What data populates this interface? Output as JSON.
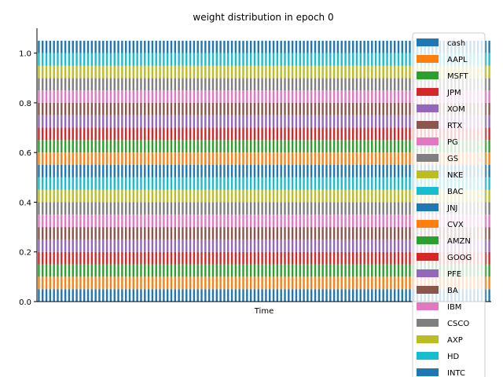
{
  "chart_data": {
    "type": "bar",
    "stacked": true,
    "title": "weight distribution in epoch 0",
    "xlabel": "Time",
    "ylabel": "",
    "ylim": [
      0,
      1.1
    ],
    "yticks": [
      "0.0",
      "0.2",
      "0.4",
      "0.6",
      "0.8",
      "1.0"
    ],
    "grid": false,
    "legend_position": "right",
    "weight_per_asset": 0.05,
    "bar_count": 120,
    "series": [
      {
        "name": "cash",
        "color": "#1f77b4"
      },
      {
        "name": "AAPL",
        "color": "#ff7f0e"
      },
      {
        "name": "MSFT",
        "color": "#2ca02c"
      },
      {
        "name": "JPM",
        "color": "#d62728"
      },
      {
        "name": "XOM",
        "color": "#9467bd"
      },
      {
        "name": "RTX",
        "color": "#8c564b"
      },
      {
        "name": "PG",
        "color": "#e377c2"
      },
      {
        "name": "GS",
        "color": "#7f7f7f"
      },
      {
        "name": "NKE",
        "color": "#bcbd22"
      },
      {
        "name": "BAC",
        "color": "#17becf"
      },
      {
        "name": "JNJ",
        "color": "#1f77b4"
      },
      {
        "name": "CVX",
        "color": "#ff7f0e"
      },
      {
        "name": "AMZN",
        "color": "#2ca02c"
      },
      {
        "name": "GOOG",
        "color": "#d62728"
      },
      {
        "name": "PFE",
        "color": "#9467bd"
      },
      {
        "name": "BA",
        "color": "#8c564b"
      },
      {
        "name": "IBM",
        "color": "#e377c2"
      },
      {
        "name": "CSCO",
        "color": "#7f7f7f"
      },
      {
        "name": "AXP",
        "color": "#bcbd22"
      },
      {
        "name": "HD",
        "color": "#17becf"
      },
      {
        "name": "INTC",
        "color": "#1f77b4"
      }
    ]
  }
}
